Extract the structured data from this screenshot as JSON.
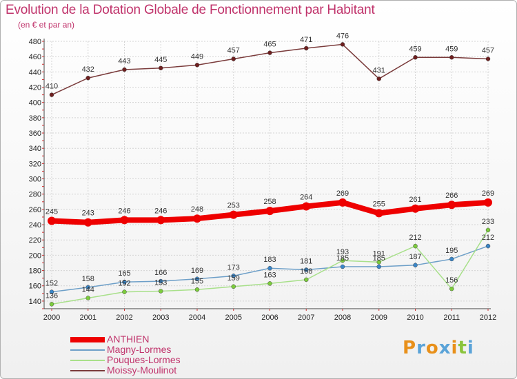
{
  "chart_data": {
    "type": "line",
    "title": "Evolution de la Dotation Globale de Fonctionnement par Habitant",
    "subtitle": "(en € et par an)",
    "xlabel": "",
    "ylabel": "",
    "ylim": [
      130,
      480
    ],
    "yticks": [
      140,
      160,
      180,
      200,
      220,
      240,
      260,
      280,
      300,
      320,
      340,
      360,
      380,
      400,
      420,
      440,
      460,
      480
    ],
    "grid": true,
    "legend_position": "bottom-left",
    "categories": [
      "2000",
      "2001",
      "2002",
      "2003",
      "2004",
      "2005",
      "2006",
      "2007",
      "2008",
      "2009",
      "2010",
      "2011",
      "2012"
    ],
    "series": [
      {
        "name": "ANTHIEN",
        "color": "#ee0000",
        "emphasis": true,
        "values": [
          245,
          243,
          246,
          246,
          248,
          253,
          258,
          264,
          269,
          255,
          261,
          266,
          269
        ]
      },
      {
        "name": "Magny-Lormes",
        "color": "#6d9fc8",
        "point_color": "#3a86c8",
        "values": [
          152,
          158,
          165,
          166,
          169,
          173,
          183,
          181,
          185,
          185,
          187,
          195,
          212
        ]
      },
      {
        "name": "Pouques-Lormes",
        "color": "#a8e08a",
        "point_color": "#7ccc3c",
        "values": [
          136,
          144,
          152,
          153,
          155,
          159,
          163,
          168,
          193,
          191,
          212,
          156,
          233
        ]
      },
      {
        "name": "Moissy-Moulinot",
        "color": "#7a3b3b",
        "point_color": "#6e1f1f",
        "values": [
          410,
          432,
          443,
          445,
          449,
          457,
          465,
          471,
          476,
          431,
          459,
          459,
          457
        ]
      }
    ]
  },
  "branding": {
    "logo_letters": [
      "P",
      "r",
      "o",
      "x",
      "i",
      "t",
      "i"
    ],
    "logo_colors": [
      "#e8901a",
      "#5aa3d8",
      "#e8901a",
      "#5aa3d8",
      "#e8901a",
      "#8ac43c",
      "#5aa3d8"
    ]
  }
}
